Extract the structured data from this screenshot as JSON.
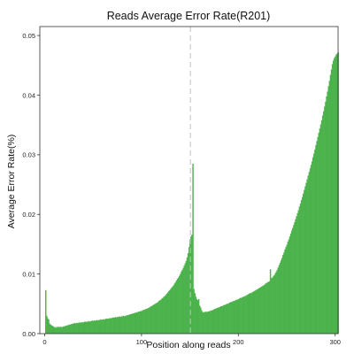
{
  "chart_data": {
    "type": "bar",
    "title": "Reads Average Error Rate(R201)",
    "xlabel": "Position along reads",
    "ylabel": "Average Error Rate(%)",
    "xlim": [
      -5,
      303
    ],
    "ylim": [
      0,
      0.0515
    ],
    "x_ticks": [
      0,
      100,
      200,
      300
    ],
    "x_tick_labels": [
      "0",
      "100",
      "200",
      "300"
    ],
    "y_ticks": [
      0,
      0.01,
      0.02,
      0.03,
      0.04,
      0.05
    ],
    "y_tick_labels": [
      "0.00",
      "0.01",
      "0.02",
      "0.03",
      "0.04",
      "0.05"
    ],
    "read_boundary": 150.5,
    "bar_color": "#4db34d",
    "boundary_color": "#bfbfbf",
    "grid": false,
    "series": [
      {
        "x_start": 1,
        "values": [
          0.0073,
          0.003,
          0.0026,
          0.0024,
          0.0017,
          0.0015,
          0.0014,
          0.0013,
          0.0012,
          0.0011,
          0.001,
          0.0011,
          0.0011,
          0.0012,
          0.001,
          0.0012,
          0.0011,
          0.0011,
          0.0012,
          0.0012,
          0.0013,
          0.0013,
          0.0014,
          0.0014,
          0.0015,
          0.0015,
          0.0016,
          0.0016,
          0.0017,
          0.0017,
          0.0018,
          0.0017,
          0.0018,
          0.0018,
          0.0018,
          0.0019,
          0.0018,
          0.0019,
          0.0019,
          0.0019,
          0.002,
          0.002,
          0.002,
          0.002,
          0.0021,
          0.002,
          0.0021,
          0.0021,
          0.0022,
          0.0021,
          0.0022,
          0.0022,
          0.0022,
          0.0023,
          0.0022,
          0.0023,
          0.0023,
          0.0024,
          0.0023,
          0.0024,
          0.0024,
          0.0024,
          0.0025,
          0.0025,
          0.0025,
          0.0025,
          0.0026,
          0.0026,
          0.0026,
          0.0027,
          0.0027,
          0.0027,
          0.0028,
          0.0027,
          0.0028,
          0.0028,
          0.0029,
          0.0028,
          0.0029,
          0.0029,
          0.003,
          0.0029,
          0.003,
          0.003,
          0.0031,
          0.0031,
          0.0032,
          0.0032,
          0.0033,
          0.0033,
          0.0034,
          0.0034,
          0.0035,
          0.0035,
          0.0036,
          0.0036,
          0.0037,
          0.0037,
          0.0038,
          0.0038,
          0.0039,
          0.004,
          0.004,
          0.0041,
          0.0042,
          0.0042,
          0.0043,
          0.0044,
          0.0045,
          0.0046,
          0.0047,
          0.0048,
          0.0049,
          0.005,
          0.0051,
          0.0052,
          0.0053,
          0.0055,
          0.0056,
          0.0057,
          0.0059,
          0.006,
          0.0062,
          0.0063,
          0.0065,
          0.0067,
          0.0069,
          0.0071,
          0.0073,
          0.0075,
          0.0077,
          0.0079,
          0.0081,
          0.0084,
          0.0086,
          0.0089,
          0.0092,
          0.0094,
          0.0097,
          0.01,
          0.0104,
          0.0107,
          0.011,
          0.0114,
          0.0118,
          0.0122,
          0.0128,
          0.0135,
          0.0145,
          0.0158,
          0.0163,
          0.0166,
          0.0285,
          0.0075,
          0.0068,
          0.0062,
          0.0058,
          0.0056,
          0.0058,
          0.0047,
          0.0044,
          0.0039,
          0.0036,
          0.0036,
          0.0036,
          0.0037,
          0.0036,
          0.0037,
          0.0037,
          0.0038,
          0.0038,
          0.0039,
          0.0039,
          0.004,
          0.0041,
          0.0042,
          0.0042,
          0.0043,
          0.0044,
          0.0044,
          0.0045,
          0.0046,
          0.0046,
          0.0047,
          0.0048,
          0.0048,
          0.0049,
          0.005,
          0.005,
          0.0051,
          0.0052,
          0.0053,
          0.0053,
          0.0054,
          0.0055,
          0.0055,
          0.0056,
          0.0057,
          0.0057,
          0.0058,
          0.0059,
          0.006,
          0.006,
          0.0061,
          0.0062,
          0.0062,
          0.0063,
          0.0064,
          0.0065,
          0.0066,
          0.0067,
          0.0068,
          0.0068,
          0.0069,
          0.007,
          0.0071,
          0.0072,
          0.0073,
          0.0074,
          0.0075,
          0.0076,
          0.0077,
          0.0078,
          0.0079,
          0.008,
          0.0081,
          0.0082,
          0.0084,
          0.0085,
          0.0086,
          0.0087,
          0.0088,
          0.0108,
          0.0093,
          0.0094,
          0.0096,
          0.0098,
          0.0101,
          0.0104,
          0.0107,
          0.0111,
          0.0115,
          0.0119,
          0.0123,
          0.0127,
          0.0132,
          0.0136,
          0.0141,
          0.0145,
          0.0149,
          0.0154,
          0.0158,
          0.0163,
          0.0168,
          0.0173,
          0.0177,
          0.0182,
          0.0187,
          0.0192,
          0.0197,
          0.0202,
          0.0207,
          0.0213,
          0.0218,
          0.0224,
          0.0229,
          0.0235,
          0.0241,
          0.0247,
          0.0253,
          0.0259,
          0.0265,
          0.0271,
          0.0277,
          0.0283,
          0.0289,
          0.0296,
          0.0302,
          0.0309,
          0.0316,
          0.0323,
          0.033,
          0.0337,
          0.0344,
          0.0351,
          0.0358,
          0.0366,
          0.0373,
          0.0381,
          0.0389,
          0.0398,
          0.0406,
          0.0415,
          0.0424,
          0.0434,
          0.0443,
          0.0452,
          0.0458,
          0.0462,
          0.0465,
          0.0468,
          0.047,
          0.0472
        ]
      }
    ]
  }
}
